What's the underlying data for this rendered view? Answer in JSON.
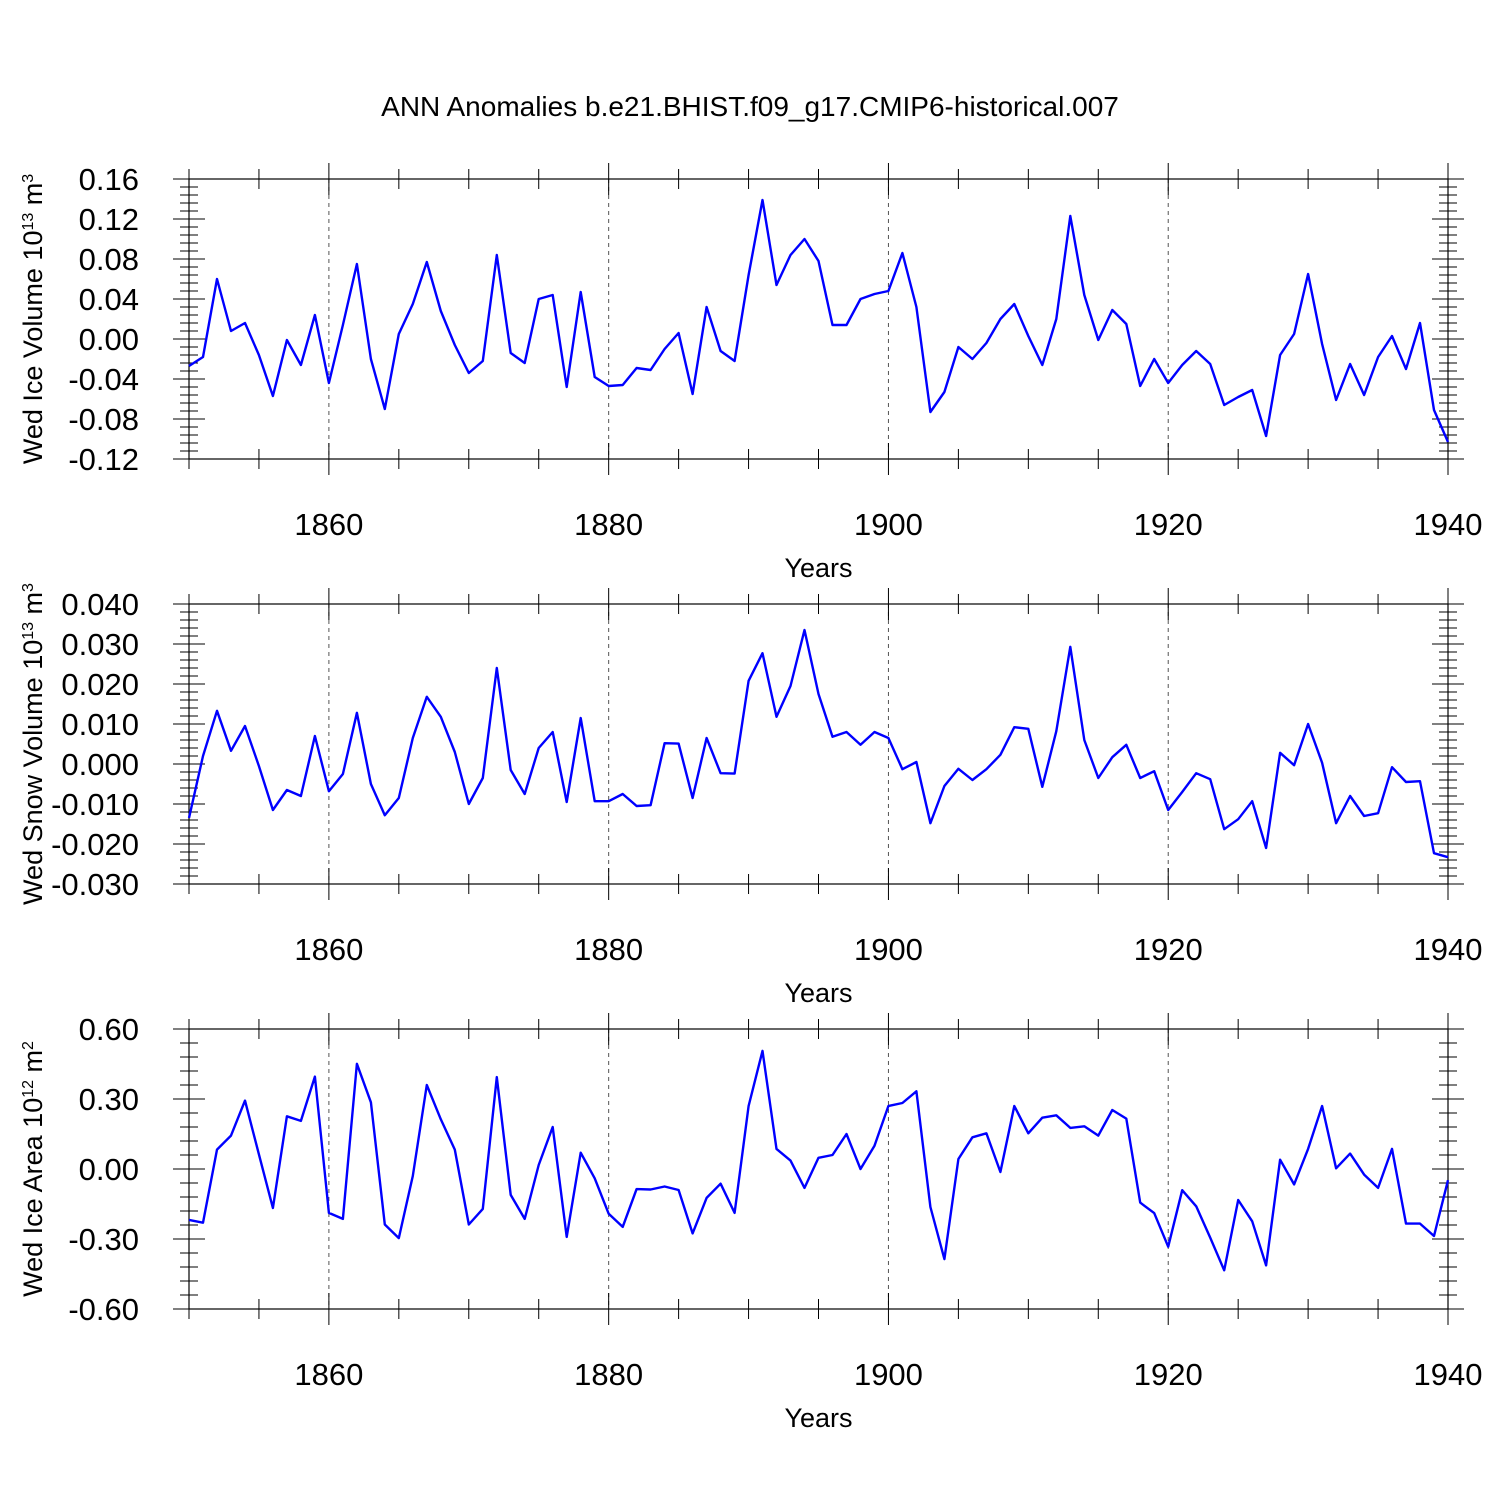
{
  "title": "ANN Anomalies b.e21.BHIST.f09_g17.CMIP6-historical.007",
  "colors": {
    "line": "#0000ff",
    "axes": "#000000",
    "grid": "#555555"
  },
  "chart_data": [
    {
      "type": "line",
      "name": "Wed Ice Volume",
      "ylabel_main": "Wed Ice Volume 10",
      "ylabel_exp": "13",
      "ylabel_unit": " m",
      "ylabel_unit_exp": "3",
      "xlabel": "Years",
      "xlim": [
        1850,
        1940
      ],
      "ylim": [
        -0.12,
        0.16
      ],
      "x_ticks": [
        1860,
        1880,
        1900,
        1920,
        1940
      ],
      "x_tick_labels": [
        "1860",
        "1880",
        "1900",
        "1920",
        "1940"
      ],
      "y_ticks": [
        -0.12,
        -0.08,
        -0.04,
        0.0,
        0.04,
        0.08,
        0.12,
        0.16
      ],
      "y_tick_labels": [
        "-0.12",
        "-0.08",
        "-0.04",
        "0.00",
        "0.04",
        "0.08",
        "0.12",
        "0.16"
      ],
      "x_start": 1850,
      "values": [
        -0.027,
        -0.018,
        0.06,
        0.008,
        0.016,
        -0.016,
        -0.057,
        -0.001,
        -0.026,
        0.024,
        -0.044,
        0.014,
        0.075,
        -0.02,
        -0.07,
        0.005,
        0.035,
        0.077,
        0.028,
        -0.006,
        -0.034,
        -0.022,
        0.084,
        -0.014,
        -0.024,
        0.04,
        0.044,
        -0.048,
        0.047,
        -0.038,
        -0.047,
        -0.046,
        -0.029,
        -0.031,
        -0.01,
        0.006,
        -0.055,
        0.032,
        -0.012,
        -0.022,
        0.064,
        0.139,
        0.054,
        0.084,
        0.1,
        0.078,
        0.014,
        0.014,
        0.04,
        0.045,
        0.048,
        0.086,
        0.032,
        -0.073,
        -0.053,
        -0.008,
        -0.02,
        -0.004,
        0.02,
        0.035,
        0.003,
        -0.026,
        0.02,
        0.123,
        0.044,
        -0.001,
        0.029,
        0.015,
        -0.047,
        -0.02,
        -0.044,
        -0.026,
        -0.012,
        -0.025,
        -0.066,
        -0.058,
        -0.051,
        -0.097,
        -0.016,
        0.005,
        0.065,
        -0.005,
        -0.061,
        -0.025,
        -0.056,
        -0.018,
        0.003,
        -0.03,
        0.016,
        -0.071,
        -0.103
      ]
    },
    {
      "type": "line",
      "name": "Wed Snow Volume",
      "ylabel_main": "Wed Snow Volume 10",
      "ylabel_exp": "13",
      "ylabel_unit": " m",
      "ylabel_unit_exp": "3",
      "xlabel": "Years",
      "xlim": [
        1850,
        1940
      ],
      "ylim": [
        -0.03,
        0.04
      ],
      "x_ticks": [
        1860,
        1880,
        1900,
        1920,
        1940
      ],
      "x_tick_labels": [
        "1860",
        "1880",
        "1900",
        "1920",
        "1940"
      ],
      "y_ticks": [
        -0.03,
        -0.02,
        -0.01,
        0.0,
        0.01,
        0.02,
        0.03,
        0.04
      ],
      "y_tick_labels": [
        "-0.030",
        "-0.020",
        "-0.010",
        "0.000",
        "0.010",
        "0.020",
        "0.030",
        "0.040"
      ],
      "x_start": 1850,
      "values": [
        -0.0135,
        0.002,
        0.0133,
        0.0033,
        0.0095,
        -0.0005,
        -0.0115,
        -0.0065,
        -0.008,
        0.007,
        -0.0068,
        -0.0025,
        0.0128,
        -0.005,
        -0.0128,
        -0.0085,
        0.0065,
        0.0168,
        0.0118,
        0.003,
        -0.01,
        -0.0035,
        0.024,
        -0.0015,
        -0.0075,
        0.004,
        0.008,
        -0.0095,
        0.0115,
        -0.0093,
        -0.0093,
        -0.0075,
        -0.0105,
        -0.0103,
        0.0052,
        0.0051,
        -0.0085,
        0.0065,
        -0.0023,
        -0.0024,
        0.0208,
        0.0277,
        0.0118,
        0.0195,
        0.0335,
        0.0175,
        0.0068,
        0.008,
        0.0048,
        0.008,
        0.0065,
        -0.0013,
        0.0005,
        -0.0148,
        -0.0055,
        -0.0012,
        -0.004,
        -0.0013,
        0.0023,
        0.0092,
        0.0088,
        -0.0057,
        0.0082,
        0.0293,
        0.006,
        -0.0035,
        0.0017,
        0.0048,
        -0.0035,
        -0.0018,
        -0.0115,
        -0.007,
        -0.0023,
        -0.0038,
        -0.0163,
        -0.0138,
        -0.0093,
        -0.021,
        0.0028,
        -0.0003,
        0.01,
        0.0003,
        -0.0148,
        -0.008,
        -0.013,
        -0.0123,
        -0.0008,
        -0.0045,
        -0.0043,
        -0.0223,
        -0.0233
      ]
    },
    {
      "type": "line",
      "name": "Wed Ice Area",
      "ylabel_main": "Wed Ice Area 10",
      "ylabel_exp": "12",
      "ylabel_unit": " m",
      "ylabel_unit_exp": "2",
      "xlabel": "Years",
      "xlim": [
        1850,
        1940
      ],
      "ylim": [
        -0.6,
        0.6
      ],
      "x_ticks": [
        1860,
        1880,
        1900,
        1920,
        1940
      ],
      "x_tick_labels": [
        "1860",
        "1880",
        "1900",
        "1920",
        "1940"
      ],
      "y_ticks": [
        -0.6,
        -0.3,
        0.0,
        0.3,
        0.6
      ],
      "y_tick_labels": [
        "-0.60",
        "-0.30",
        "0.00",
        "0.30",
        "0.60"
      ],
      "x_start": 1850,
      "values": [
        -0.218,
        -0.23,
        0.083,
        0.143,
        0.293,
        0.063,
        -0.167,
        0.226,
        0.206,
        0.396,
        -0.188,
        -0.214,
        0.451,
        0.286,
        -0.238,
        -0.296,
        -0.03,
        0.36,
        0.213,
        0.083,
        -0.238,
        -0.171,
        0.394,
        -0.111,
        -0.214,
        0.017,
        0.18,
        -0.291,
        0.07,
        -0.04,
        -0.192,
        -0.248,
        -0.086,
        -0.088,
        -0.075,
        -0.09,
        -0.276,
        -0.124,
        -0.063,
        -0.188,
        0.27,
        0.506,
        0.086,
        0.036,
        -0.081,
        0.048,
        0.06,
        0.15,
        0.0,
        0.1,
        0.27,
        0.283,
        0.333,
        -0.163,
        -0.386,
        0.043,
        0.136,
        0.153,
        -0.013,
        0.27,
        0.153,
        0.22,
        0.23,
        0.176,
        0.183,
        0.143,
        0.253,
        0.216,
        -0.144,
        -0.189,
        -0.333,
        -0.091,
        -0.16,
        -0.294,
        -0.434,
        -0.133,
        -0.224,
        -0.413,
        0.04,
        -0.066,
        0.086,
        0.27,
        0.003,
        0.066,
        -0.024,
        -0.081,
        0.086,
        -0.234,
        -0.234,
        -0.287,
        -0.048
      ]
    }
  ]
}
